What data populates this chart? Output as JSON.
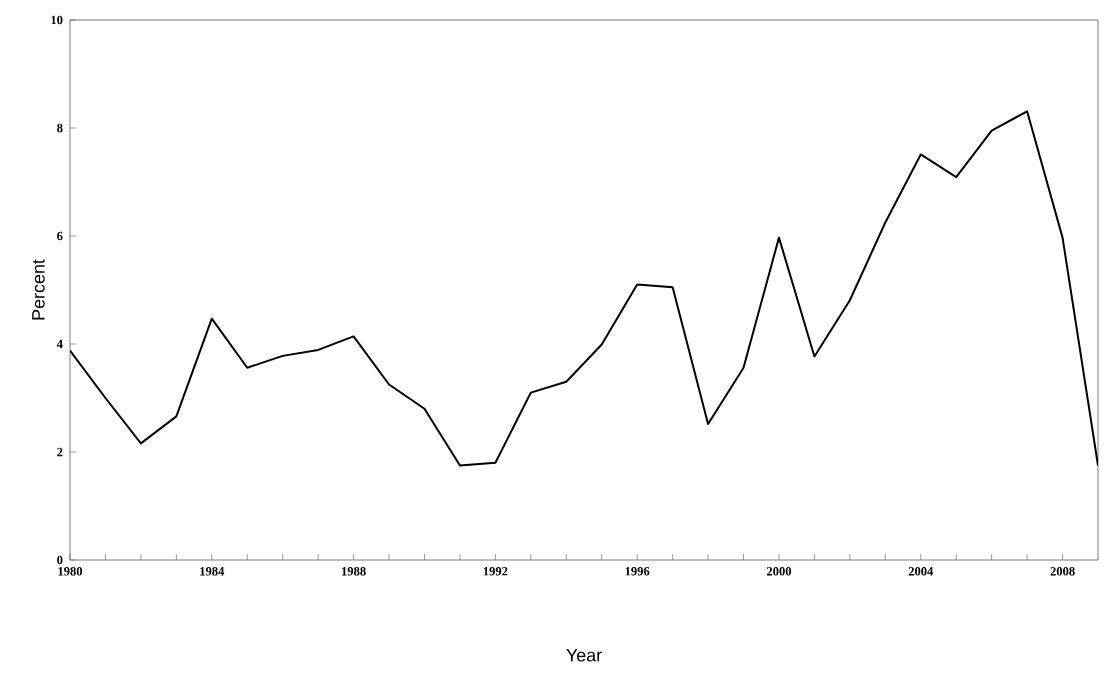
{
  "chart_data": {
    "type": "line",
    "xlabel": "Year",
    "ylabel": "Percent",
    "x": [
      1980,
      1981,
      1982,
      1983,
      1984,
      1985,
      1986,
      1987,
      1988,
      1989,
      1990,
      1991,
      1992,
      1993,
      1994,
      1995,
      1996,
      1997,
      1998,
      1999,
      2000,
      2001,
      2002,
      2003,
      2004,
      2005,
      2006,
      2007,
      2008,
      2009
    ],
    "series": [
      {
        "color": "#000000",
        "values": [
          3.88,
          3.0,
          2.16,
          2.66,
          4.47,
          3.56,
          3.78,
          3.89,
          4.14,
          3.25,
          2.8,
          1.75,
          1.8,
          3.1,
          3.3,
          3.99,
          5.1,
          5.05,
          2.52,
          3.56,
          5.97,
          3.77,
          4.81,
          6.25,
          7.51,
          7.09,
          7.95,
          8.31,
          5.97,
          1.75
        ]
      }
    ],
    "xlim": [
      1980,
      2009
    ],
    "xticks": [
      1980,
      {
        "value": 1981,
        "label": null
      },
      {
        "value": 1982,
        "label": null
      },
      {
        "value": 1983,
        "label": null
      },
      1984,
      {
        "value": 1985,
        "label": null
      },
      {
        "value": 1986,
        "label": null
      },
      {
        "value": 1987,
        "label": null
      },
      1988,
      {
        "value": 1989,
        "label": null
      },
      {
        "value": 1990,
        "label": null
      },
      {
        "value": 1991,
        "label": null
      },
      1992,
      {
        "value": 1993,
        "label": null
      },
      {
        "value": 1994,
        "label": null
      },
      {
        "value": 1995,
        "label": null
      },
      1996,
      {
        "value": 1997,
        "label": null
      },
      {
        "value": 1998,
        "label": null
      },
      {
        "value": 1999,
        "label": null
      },
      2000,
      {
        "value": 2001,
        "label": null
      },
      {
        "value": 2002,
        "label": null
      },
      {
        "value": 2003,
        "label": null
      },
      2004,
      {
        "value": 2005,
        "label": null
      },
      {
        "value": 2006,
        "label": null
      },
      {
        "value": 2007,
        "label": null
      },
      2008
    ],
    "ylim": [
      0,
      10
    ],
    "yticks": [
      0,
      2,
      4,
      6,
      8,
      10
    ],
    "grid": false,
    "marker": "none",
    "line_style": "solid"
  }
}
